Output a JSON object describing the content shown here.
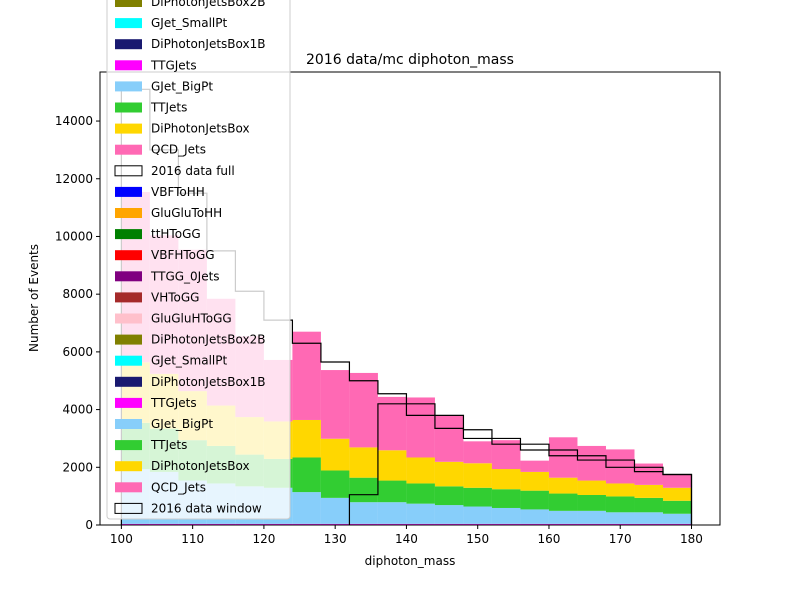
{
  "chart_data": {
    "type": "bar",
    "title": "2016 data/mc diphoton_mass",
    "xlabel": "diphoton_mass",
    "ylabel": "Number of Events",
    "xlim": [
      97,
      184
    ],
    "ylim": [
      0,
      15700
    ],
    "xticks": [
      100,
      110,
      120,
      130,
      140,
      150,
      160,
      170,
      180
    ],
    "yticks": [
      0,
      2000,
      4000,
      6000,
      8000,
      10000,
      12000,
      14000
    ],
    "bin_edges": [
      100,
      104,
      108,
      112,
      116,
      120,
      124,
      128,
      132,
      136,
      140,
      144,
      148,
      152,
      156,
      160,
      164,
      168,
      172,
      176,
      180
    ],
    "legend": {
      "position": "upper-left",
      "entries": [
        {
          "label": "DiPhotonJetsBox2B",
          "color": "#808000",
          "kind": "patch"
        },
        {
          "label": "GJet_SmallPt",
          "color": "#00ffff",
          "kind": "patch"
        },
        {
          "label": "DiPhotonJetsBox1B",
          "color": "#191970",
          "kind": "patch"
        },
        {
          "label": "TTGJets",
          "color": "#ff00ff",
          "kind": "patch"
        },
        {
          "label": "GJet_BigPt",
          "color": "#87cefa",
          "kind": "patch"
        },
        {
          "label": "TTJets",
          "color": "#32cd32",
          "kind": "patch"
        },
        {
          "label": "DiPhotonJetsBox",
          "color": "#ffd700",
          "kind": "patch"
        },
        {
          "label": "QCD_Jets",
          "color": "#ff69b4",
          "kind": "patch"
        },
        {
          "label": "2016 data full",
          "color": "#000000",
          "kind": "outline"
        },
        {
          "label": "VBFToHH",
          "color": "#0000ff",
          "kind": "patch"
        },
        {
          "label": "GluGluToHH",
          "color": "#ffa500",
          "kind": "patch"
        },
        {
          "label": "ttHToGG",
          "color": "#008000",
          "kind": "patch"
        },
        {
          "label": "VBFHToGG",
          "color": "#ff0000",
          "kind": "patch"
        },
        {
          "label": "TTGG_0Jets",
          "color": "#800080",
          "kind": "patch"
        },
        {
          "label": "VHToGG",
          "color": "#a52a2a",
          "kind": "patch"
        },
        {
          "label": "GluGluHToGG",
          "color": "#ffc0cb",
          "kind": "patch"
        },
        {
          "label": "DiPhotonJetsBox2B",
          "color": "#808000",
          "kind": "patch"
        },
        {
          "label": "GJet_SmallPt",
          "color": "#00ffff",
          "kind": "patch"
        },
        {
          "label": "DiPhotonJetsBox1B",
          "color": "#191970",
          "kind": "patch"
        },
        {
          "label": "TTGJets",
          "color": "#ff00ff",
          "kind": "patch"
        },
        {
          "label": "GJet_BigPt",
          "color": "#87cefa",
          "kind": "patch"
        },
        {
          "label": "TTJets",
          "color": "#32cd32",
          "kind": "patch"
        },
        {
          "label": "DiPhotonJetsBox",
          "color": "#ffd700",
          "kind": "patch"
        },
        {
          "label": "QCD_Jets",
          "color": "#ff69b4",
          "kind": "patch"
        },
        {
          "label": "2016 data window",
          "color": "#000000",
          "kind": "outline"
        }
      ]
    },
    "stack_series": [
      {
        "name": "DiPhotonJetsBox1B",
        "color": "#191970",
        "values": [
          20,
          20,
          20,
          20,
          20,
          20,
          20,
          20,
          20,
          20,
          20,
          20,
          20,
          20,
          20,
          20,
          20,
          20,
          20,
          20
        ]
      },
      {
        "name": "TTGJets",
        "color": "#ff00ff",
        "values": [
          20,
          20,
          20,
          20,
          20,
          20,
          20,
          20,
          20,
          20,
          20,
          20,
          20,
          20,
          20,
          20,
          20,
          20,
          20,
          20
        ]
      },
      {
        "name": "GJet_BigPt",
        "color": "#87cefa",
        "values": [
          1900,
          1800,
          1500,
          1400,
          1300,
          1250,
          1100,
          900,
          750,
          750,
          700,
          650,
          600,
          550,
          500,
          450,
          450,
          400,
          400,
          350
        ]
      },
      {
        "name": "TTJets",
        "color": "#32cd32",
        "values": [
          1600,
          1500,
          1400,
          1300,
          1100,
          1000,
          1200,
          950,
          850,
          750,
          700,
          650,
          650,
          650,
          650,
          600,
          550,
          550,
          500,
          450
        ]
      },
      {
        "name": "DiPhotonJetsBox",
        "color": "#ffd700",
        "values": [
          2100,
          1900,
          1700,
          1400,
          1300,
          1300,
          1300,
          1100,
          1050,
          1050,
          900,
          850,
          850,
          700,
          650,
          550,
          500,
          450,
          450,
          450
        ]
      },
      {
        "name": "QCD_Jets",
        "color": "#ff69b4",
        "values": [
          5900,
          4800,
          4900,
          3700,
          2800,
          2130,
          3060,
          2380,
          2580,
          1850,
          2080,
          1610,
          760,
          1000,
          390,
          1400,
          1200,
          1180,
          740,
          460
        ]
      }
    ],
    "blinded_region": [
      115,
      135
    ],
    "series": [
      {
        "name": "2016 data full",
        "color": "#000000",
        "values": [
          15100,
          13000,
          11500,
          9500,
          8100,
          7100,
          6300,
          5650,
          5000,
          4550,
          4200,
          3800,
          3300,
          3000,
          2800,
          2600,
          2400,
          2250,
          2000,
          1750
        ]
      },
      {
        "name": "2016 data window",
        "color": "#000000",
        "values": [
          null,
          null,
          null,
          null,
          null,
          null,
          null,
          null,
          1050,
          4200,
          3800,
          3350,
          3000,
          2800,
          2600,
          2400,
          2250,
          2000,
          1850,
          1750
        ]
      }
    ]
  }
}
